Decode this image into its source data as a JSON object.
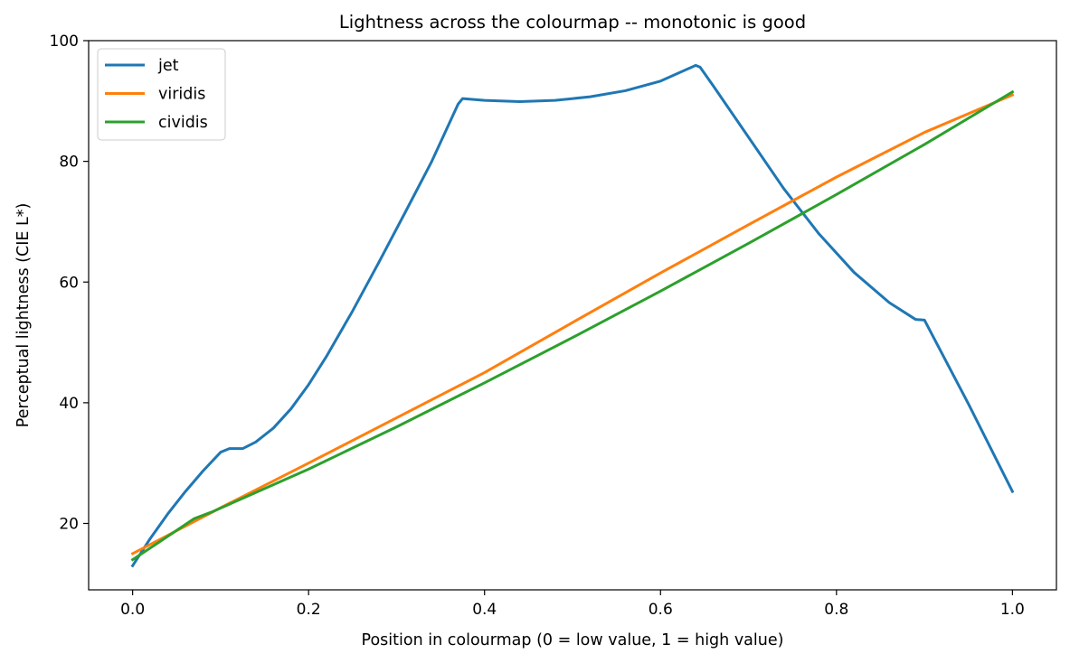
{
  "chart_data": {
    "type": "line",
    "title": "Lightness across the colourmap -- monotonic is good",
    "xlabel": "Position in colourmap (0 = low value, 1 = high value)",
    "ylabel": "Perceptual lightness (CIE L*)",
    "xlim": [
      -0.05,
      1.05
    ],
    "ylim": [
      9,
      100
    ],
    "xticks": [
      0.0,
      0.2,
      0.4,
      0.6,
      0.8,
      1.0
    ],
    "xtick_labels": [
      "0.0",
      "0.2",
      "0.4",
      "0.6",
      "0.8",
      "1.0"
    ],
    "yticks": [
      20,
      40,
      60,
      80,
      100
    ],
    "ytick_labels": [
      "20",
      "40",
      "60",
      "80",
      "100"
    ],
    "grid": false,
    "legend_position": "upper-left",
    "series": [
      {
        "name": "jet",
        "color": "#1f77b4",
        "x": [
          0.0,
          0.02,
          0.04,
          0.06,
          0.08,
          0.1,
          0.11,
          0.125,
          0.14,
          0.16,
          0.18,
          0.2,
          0.22,
          0.25,
          0.28,
          0.31,
          0.34,
          0.37,
          0.375,
          0.4,
          0.44,
          0.48,
          0.52,
          0.56,
          0.6,
          0.64,
          0.645,
          0.66,
          0.7,
          0.74,
          0.78,
          0.82,
          0.86,
          0.89,
          0.9,
          0.95,
          1.0
        ],
        "y": [
          13.0,
          17.5,
          21.6,
          25.3,
          28.7,
          31.8,
          32.4,
          32.4,
          33.5,
          35.8,
          39.0,
          43.0,
          47.6,
          55.2,
          63.3,
          71.6,
          80.0,
          89.5,
          90.4,
          90.1,
          89.9,
          90.1,
          90.7,
          91.7,
          93.3,
          95.9,
          95.6,
          92.5,
          84.0,
          75.5,
          68.0,
          61.6,
          56.6,
          53.8,
          53.7,
          39.8,
          25.3
        ]
      },
      {
        "name": "viridis",
        "color": "#ff7f0e",
        "x": [
          0.0,
          0.05,
          0.1,
          0.2,
          0.3,
          0.4,
          0.5,
          0.6,
          0.7,
          0.8,
          0.9,
          1.0
        ],
        "y": [
          15.0,
          18.8,
          22.6,
          30.0,
          37.5,
          45.0,
          53.3,
          61.5,
          69.5,
          77.4,
          84.8,
          91.0
        ]
      },
      {
        "name": "cividis",
        "color": "#2ca02c",
        "x": [
          0.0,
          0.03,
          0.07,
          0.09,
          0.2,
          0.3,
          0.4,
          0.5,
          0.6,
          0.7,
          0.8,
          0.9,
          1.0
        ],
        "y": [
          14.0,
          16.9,
          20.8,
          21.9,
          29.0,
          36.0,
          43.3,
          50.8,
          58.5,
          66.4,
          74.5,
          82.8,
          91.5
        ]
      }
    ]
  }
}
